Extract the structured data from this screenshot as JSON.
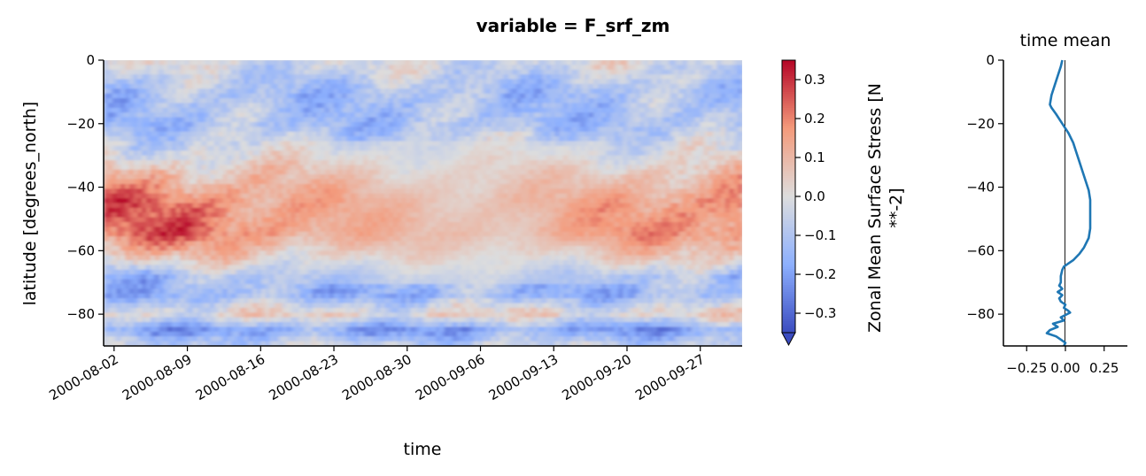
{
  "chart_data": [
    {
      "type": "heatmap",
      "suptitle": "variable = F_srf_zm",
      "xlabel": "time",
      "ylabel": "latitude [degrees_north]",
      "x_range": [
        "2000-08-01",
        "2000-10-01"
      ],
      "xticks": [
        "2000-08-02",
        "2000-08-09",
        "2000-08-16",
        "2000-08-23",
        "2000-08-30",
        "2000-09-06",
        "2000-09-13",
        "2000-09-20",
        "2000-09-27"
      ],
      "ylim": [
        -90,
        0
      ],
      "yticks": [
        0,
        -20,
        -40,
        -60,
        -80
      ],
      "colormap": "coolwarm",
      "colorbar": {
        "label": "Zonal Mean Surface Stress [N **-2]",
        "label_lines": [
          "Zonal Mean Surface Stress [N",
          "**-2]"
        ],
        "range": [
          -0.35,
          0.35
        ],
        "ticks": [
          0.3,
          0.2,
          0.1,
          0.0,
          -0.1,
          -0.2,
          -0.3
        ],
        "tick_labels": [
          "0.3",
          "0.2",
          "0.1",
          "0.0",
          "−0.1",
          "−0.2",
          "−0.3"
        ],
        "extend": "min"
      },
      "latitude_profile_of_typical_values": {
        "latitudes": [
          0,
          -10,
          -20,
          -28,
          -35,
          -45,
          -55,
          -62,
          -68,
          -74,
          -80,
          -85,
          -90
        ],
        "values": [
          -0.02,
          -0.12,
          -0.12,
          -0.03,
          0.08,
          0.2,
          0.2,
          0.05,
          -0.12,
          -0.15,
          0.03,
          -0.2,
          -0.05
        ]
      }
    },
    {
      "type": "line",
      "title": "time mean",
      "xlim": [
        -0.4,
        0.4
      ],
      "xticks": [
        "−0.25",
        "0.00",
        "0.25"
      ],
      "ylim": [
        -90,
        0
      ],
      "yticks": [
        0,
        -20,
        -40,
        -60,
        -80
      ],
      "ytick_labels": [
        "0",
        "−20",
        "−40",
        "−60",
        "−80"
      ],
      "color": "#1f77b4",
      "vertical_reference_line_at": 0,
      "series": [
        {
          "lat": [
            0,
            -2,
            -5,
            -8,
            -11,
            -14,
            -15,
            -17,
            -20,
            -23,
            -26,
            -29,
            -32,
            -35,
            -38,
            -41,
            -44,
            -47,
            -50,
            -53,
            -56,
            -59,
            -61,
            -63,
            -64,
            -65,
            -66,
            -68,
            -70,
            -71,
            -72,
            -73,
            -74,
            -75,
            -76,
            -77,
            -78,
            -79,
            -79.5,
            -80,
            -81,
            -82,
            -83,
            -84,
            -85,
            -86,
            -87,
            -88,
            -89,
            -90
          ],
          "values": [
            -0.02,
            -0.03,
            -0.05,
            -0.07,
            -0.09,
            -0.1,
            -0.09,
            -0.06,
            -0.02,
            0.02,
            0.05,
            0.07,
            0.09,
            0.11,
            0.13,
            0.15,
            0.16,
            0.16,
            0.16,
            0.16,
            0.15,
            0.12,
            0.09,
            0.05,
            0.02,
            -0.01,
            -0.02,
            -0.03,
            -0.03,
            -0.04,
            -0.02,
            -0.05,
            -0.02,
            -0.04,
            -0.03,
            0.0,
            -0.01,
            0.02,
            0.03,
            0.01,
            -0.03,
            -0.01,
            -0.08,
            -0.05,
            -0.1,
            -0.12,
            -0.06,
            -0.03,
            0.0,
            -0.01
          ]
        }
      ]
    }
  ]
}
